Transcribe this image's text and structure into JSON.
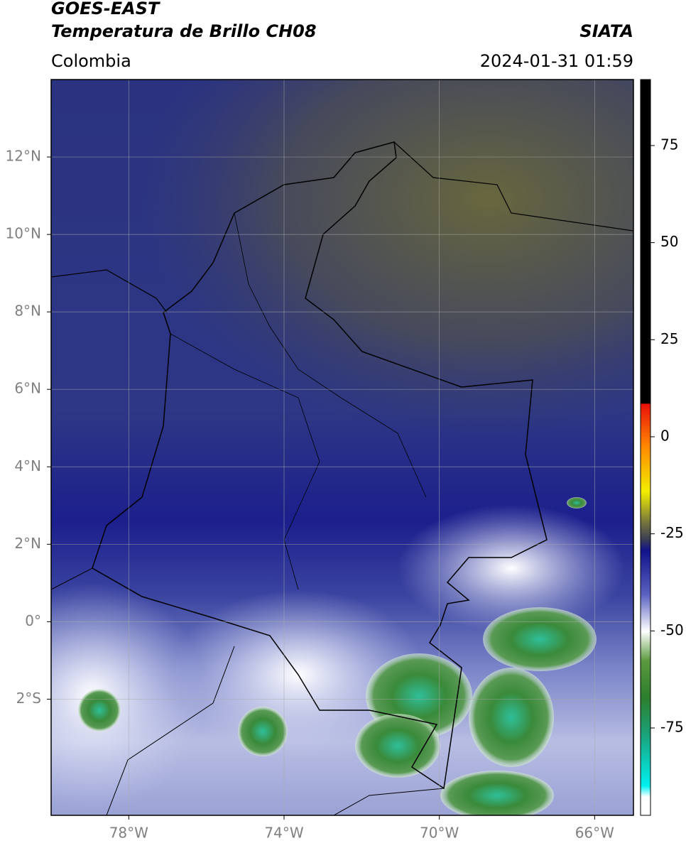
{
  "header": {
    "title": "GOES-EAST",
    "subtitle": "Temperatura de Brillo CH08",
    "source": "SIATA",
    "region": "Colombia",
    "datetime": "2024-01-31 01:59"
  },
  "map": {
    "lon_range": [
      -80,
      -65
    ],
    "lat_range": [
      -5,
      14
    ],
    "lon_ticks": [
      {
        "value": -78,
        "label": "78°W"
      },
      {
        "value": -74,
        "label": "74°W"
      },
      {
        "value": -70,
        "label": "70°W"
      },
      {
        "value": -66,
        "label": "66°W"
      }
    ],
    "lat_ticks": [
      {
        "value": 12,
        "label": "12°N"
      },
      {
        "value": 10,
        "label": "10°N"
      },
      {
        "value": 8,
        "label": "8°N"
      },
      {
        "value": 6,
        "label": "6°N"
      },
      {
        "value": 4,
        "label": "4°N"
      },
      {
        "value": 2,
        "label": "2°N"
      },
      {
        "value": 0,
        "label": "0°"
      },
      {
        "value": -2,
        "label": "2°S"
      }
    ]
  },
  "colorbar": {
    "lim": [
      -97.5,
      92
    ],
    "ticks": [
      75,
      50,
      25,
      0,
      -25,
      -50,
      -75
    ]
  }
}
